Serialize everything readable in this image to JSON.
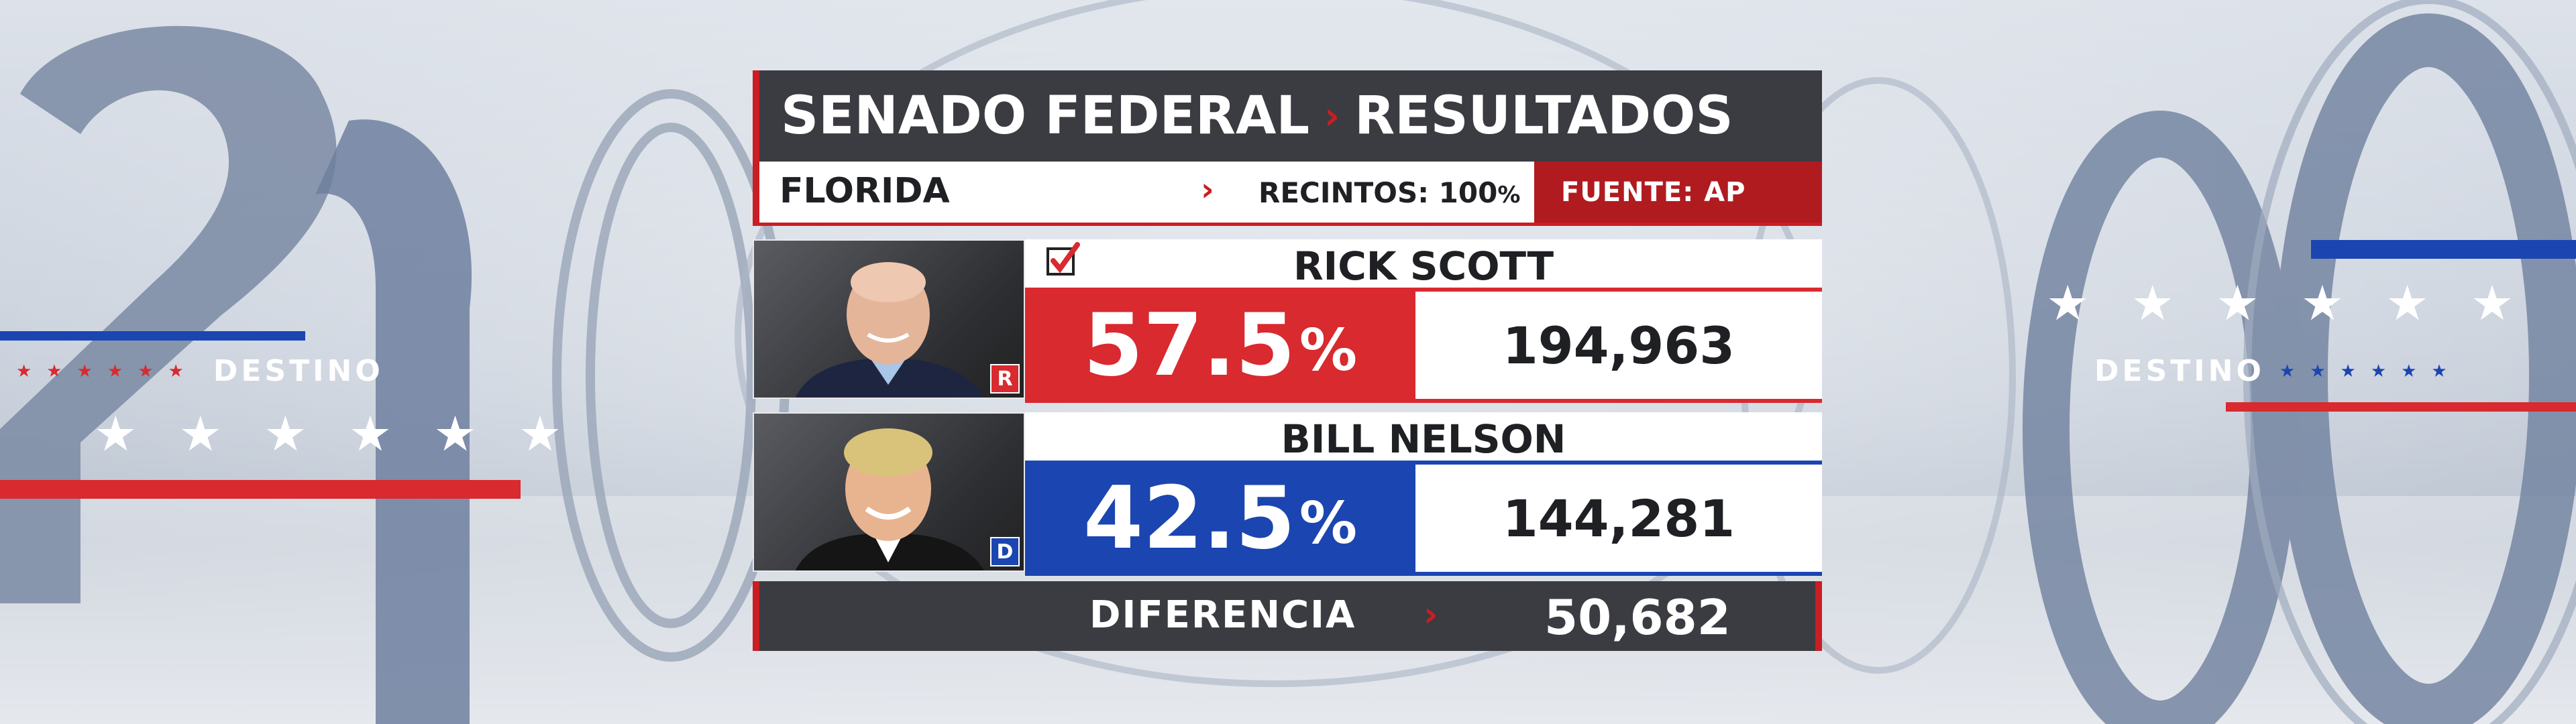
{
  "header": {
    "title_left": "SENADO FEDERAL",
    "title_right": "RESULTADOS"
  },
  "subheader": {
    "state": "FLORIDA",
    "precincts_label": "RECINTOS:",
    "precincts_value": "100",
    "precincts_unit": "%",
    "source": "FUENTE: AP"
  },
  "candidates": [
    {
      "name": "RICK SCOTT",
      "party": "R",
      "percent": "57.5",
      "percent_unit": "%",
      "votes": "194,963",
      "winner": true,
      "color": "#d82a2f"
    },
    {
      "name": "BILL NELSON",
      "party": "D",
      "percent": "42.5",
      "percent_unit": "%",
      "votes": "144,281",
      "winner": false,
      "color": "#1b45b0"
    }
  ],
  "difference": {
    "label": "DIFERENCIA",
    "value": "50,682"
  },
  "decor": {
    "left_label": "DESTINO",
    "right_label": "DESTINO",
    "accent_red": "#d82a2f",
    "accent_blue": "#1b45b0"
  }
}
